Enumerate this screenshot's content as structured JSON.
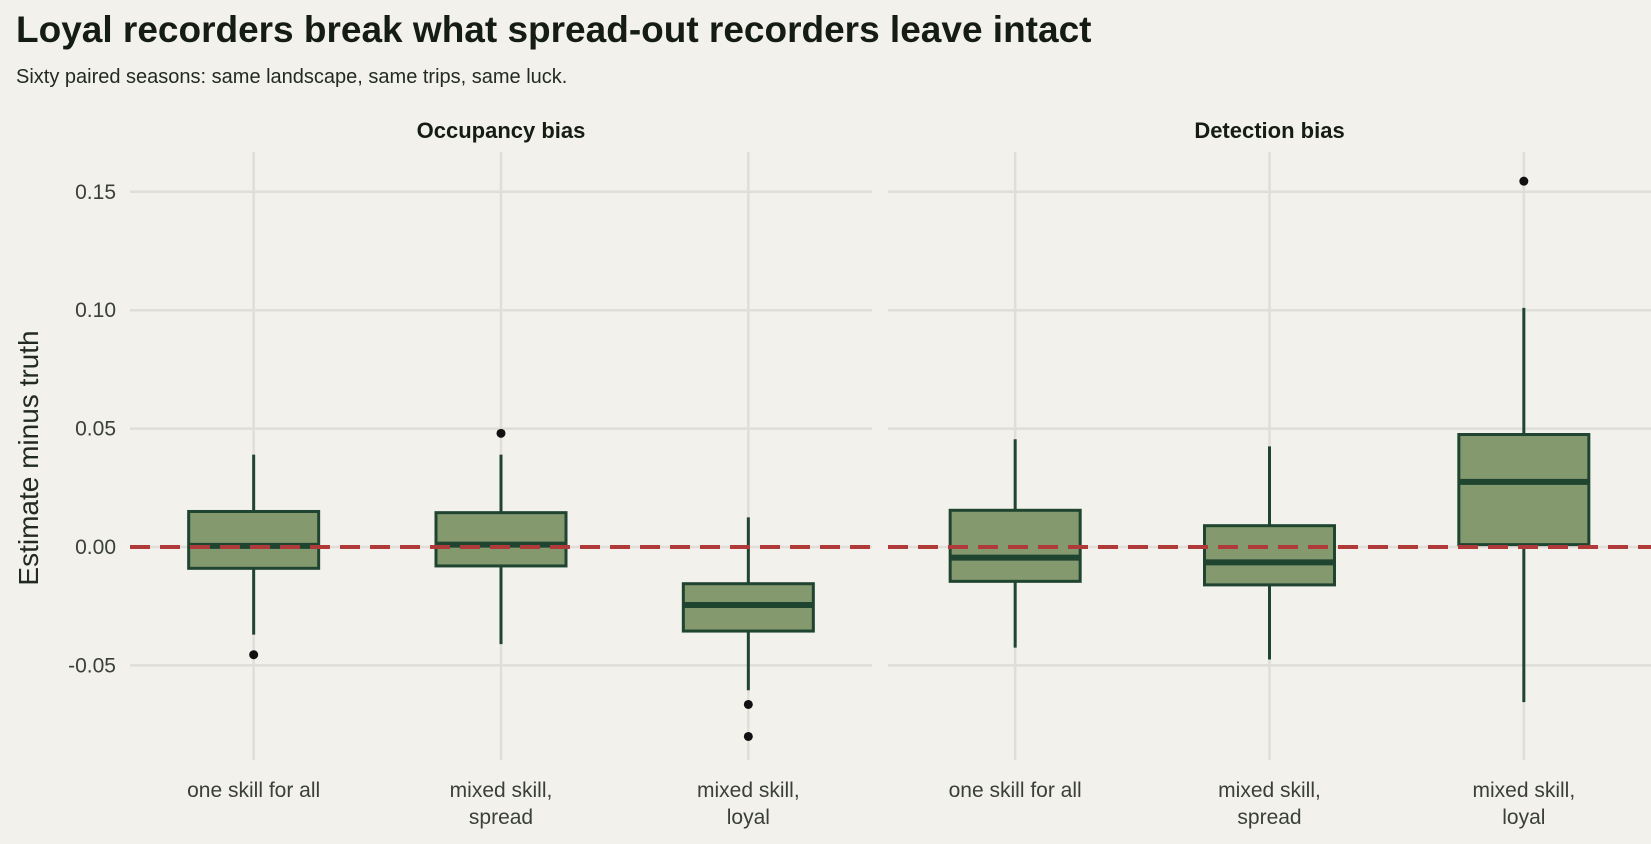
{
  "title": "Loyal recorders break what spread-out recorders leave intact",
  "subtitle": "Sixty paired seasons: same landscape, same trips, same luck.",
  "colors": {
    "background": "#f2f1eb",
    "grid": "#dfded8",
    "box_fill": "#849a6e",
    "box_stroke": "#1f4430",
    "outlier": "#111111",
    "reference_line": "#b03a3a"
  },
  "chart_data": {
    "type": "boxplot",
    "ylabel": "Estimate minus truth",
    "ylim": [
      -0.09,
      0.165
    ],
    "y_ticks": [
      0.15,
      0.1,
      0.05,
      0.0,
      -0.05
    ],
    "y_tick_labels": [
      "0.15",
      "0.10",
      "0.05",
      "0.00",
      "-0.05"
    ],
    "reference_line": {
      "y": 0.0,
      "style": "dashed"
    },
    "grid": true,
    "categories": [
      {
        "line1": "one skill for all",
        "line2": ""
      },
      {
        "line1": "mixed skill,",
        "line2": "spread"
      },
      {
        "line1": "mixed skill,",
        "line2": "loyal"
      }
    ],
    "panels": [
      {
        "title": "Occupancy bias",
        "boxes": [
          {
            "category": "one skill for all",
            "low": -0.037,
            "q1": -0.009,
            "median": 0.0005,
            "q3": 0.015,
            "high": 0.039,
            "outliers": [
              -0.0455
            ]
          },
          {
            "category": "mixed skill, spread",
            "low": -0.041,
            "q1": -0.008,
            "median": 0.001,
            "q3": 0.0145,
            "high": 0.039,
            "outliers": [
              0.048
            ]
          },
          {
            "category": "mixed skill, loyal",
            "low": -0.0605,
            "q1": -0.0355,
            "median": -0.0245,
            "q3": -0.0155,
            "high": 0.0125,
            "outliers": [
              -0.0665,
              -0.08
            ]
          }
        ]
      },
      {
        "title": "Detection bias",
        "boxes": [
          {
            "category": "one skill for all",
            "low": -0.0425,
            "q1": -0.0145,
            "median": -0.0045,
            "q3": 0.0155,
            "high": 0.0455,
            "outliers": []
          },
          {
            "category": "mixed skill, spread",
            "low": -0.0475,
            "q1": -0.016,
            "median": -0.0065,
            "q3": 0.009,
            "high": 0.0425,
            "outliers": []
          },
          {
            "category": "mixed skill, loyal",
            "low": -0.0655,
            "q1": 0.001,
            "median": 0.0275,
            "q3": 0.0475,
            "high": 0.101,
            "outliers": [
              0.1545
            ]
          }
        ]
      }
    ]
  }
}
